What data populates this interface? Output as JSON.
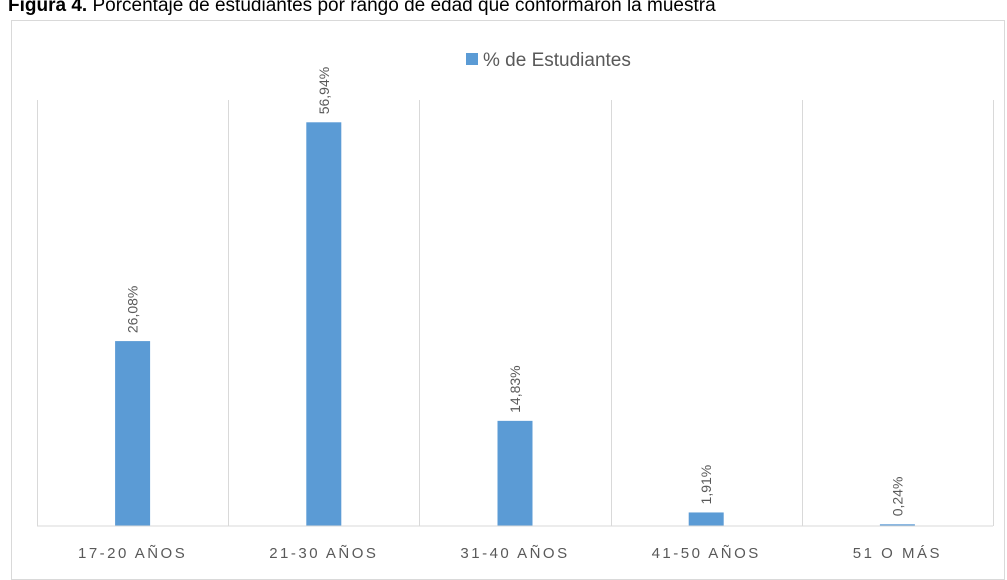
{
  "figure": {
    "caption_lead": "Figura 4.",
    "caption_text": " Porcentaje de estudiantes por rango de edad que conformaron la muestra"
  },
  "colors": {
    "bar": "#5b9bd5",
    "grid": "#d9d9d9",
    "text": "#595959"
  },
  "chart_data": {
    "type": "bar",
    "categories": [
      "17-20 AÑOS",
      "21-30 AÑOS",
      "31-40 AÑOS",
      "41-50 AÑOS",
      "51 O MÁS"
    ],
    "series": [
      {
        "name": "% de Estudiantes",
        "values": [
          26.08,
          56.94,
          14.83,
          1.91,
          0.24
        ]
      }
    ],
    "data_labels": [
      "26,08%",
      "56,94%",
      "14,83%",
      "1,91%",
      "0,24%"
    ],
    "ylim": [
      0,
      60
    ],
    "legend_position": "top-center",
    "grid": "vertical-category-separators"
  }
}
